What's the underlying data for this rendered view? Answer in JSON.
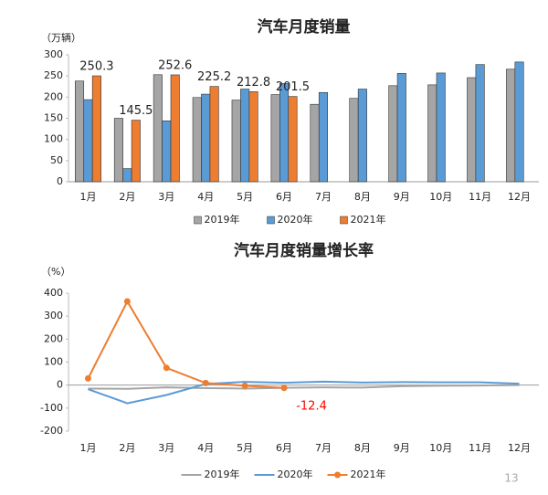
{
  "chart_data": [
    {
      "type": "bar",
      "title": "汽车月度销量",
      "y_unit": "（万辆）",
      "categories": [
        "1月",
        "2月",
        "3月",
        "4月",
        "5月",
        "6月",
        "7月",
        "8月",
        "9月",
        "10月",
        "11月",
        "12月"
      ],
      "series": [
        {
          "name": "2019年",
          "color": "#a5a5a5",
          "values": [
            238,
            150,
            253,
            199,
            193,
            206,
            183,
            197,
            227,
            229,
            246,
            266
          ]
        },
        {
          "name": "2020年",
          "color": "#5b9bd5",
          "values": [
            194,
            31,
            144,
            207,
            219,
            232,
            211,
            219,
            256,
            257,
            277,
            283
          ]
        },
        {
          "name": "2021年",
          "color": "#ed7d31",
          "values": [
            250.3,
            145.5,
            252.6,
            225.2,
            212.8,
            201.5,
            null,
            null,
            null,
            null,
            null,
            null
          ],
          "data_labels": true,
          "label_color": "#222222"
        }
      ],
      "ylim": [
        0,
        300
      ],
      "yticks": [
        0,
        50,
        100,
        150,
        200,
        250,
        300
      ],
      "grid": false,
      "legend": "bottom"
    },
    {
      "type": "line",
      "title": "汽车月度销量增长率",
      "y_unit": "（%）",
      "categories": [
        "1月",
        "2月",
        "3月",
        "4月",
        "5月",
        "6月",
        "7月",
        "8月",
        "9月",
        "10月",
        "11月",
        "12月"
      ],
      "series": [
        {
          "name": "2019年",
          "color": "#a5a5a5",
          "values": [
            -15,
            -16,
            -10,
            -13,
            -15,
            -12,
            -10,
            -11,
            -5,
            -3,
            -2,
            0
          ]
        },
        {
          "name": "2020年",
          "color": "#5b9bd5",
          "values": [
            -18,
            -79,
            -43,
            5,
            14,
            10,
            15,
            11,
            13,
            12,
            12,
            6
          ]
        },
        {
          "name": "2021年",
          "color": "#ed7d31",
          "values": [
            29,
            364,
            75,
            9,
            -3,
            -12.4,
            null,
            null,
            null,
            null,
            null,
            null
          ],
          "markers": true,
          "value_labels": [
            null,
            null,
            null,
            null,
            null,
            "-12.4"
          ],
          "label_color": "#ff0000"
        }
      ],
      "ylim": [
        -200,
        400
      ],
      "yticks": [
        -200,
        -100,
        0,
        100,
        200,
        300,
        400
      ],
      "grid": false,
      "legend": "bottom"
    }
  ],
  "page_number": "13"
}
